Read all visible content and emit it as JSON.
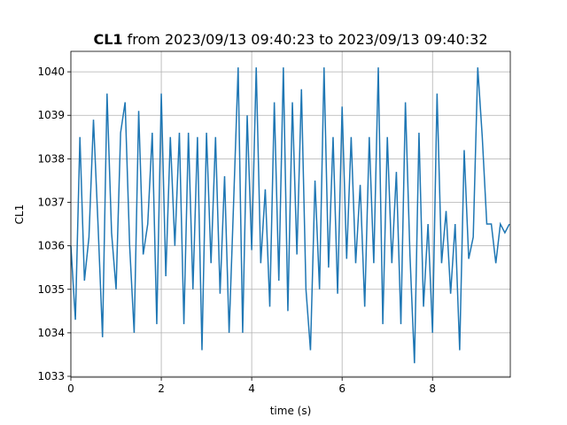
{
  "chart_data": {
    "type": "line",
    "title": [
      "CL1",
      "from 2023/09/13 09:40:23 to 2023/09/13 09:40:32"
    ],
    "xlabel": "time (s)",
    "ylabel": "CL1",
    "x": [
      0.0,
      0.1,
      0.2,
      0.3,
      0.4,
      0.5,
      0.6,
      0.7,
      0.8,
      0.9,
      1.0,
      1.1,
      1.2,
      1.3,
      1.4,
      1.5,
      1.6,
      1.7,
      1.8,
      1.9,
      2.0,
      2.1,
      2.2,
      2.3,
      2.4,
      2.5,
      2.6,
      2.7,
      2.8,
      2.9,
      3.0,
      3.1,
      3.2,
      3.3,
      3.4,
      3.5,
      3.6,
      3.7,
      3.8,
      3.9,
      4.0,
      4.1,
      4.2,
      4.3,
      4.4,
      4.5,
      4.6,
      4.7,
      4.8,
      4.9,
      5.0,
      5.1,
      5.2,
      5.3,
      5.4,
      5.5,
      5.6,
      5.7,
      5.8,
      5.9,
      6.0,
      6.1,
      6.2,
      6.3,
      6.4,
      6.5,
      6.6,
      6.7,
      6.8,
      6.9,
      7.0,
      7.1,
      7.2,
      7.3,
      7.4,
      7.5,
      7.6,
      7.7,
      7.8,
      7.9,
      8.0,
      8.1,
      8.2,
      8.3,
      8.4,
      8.5,
      8.6,
      8.7,
      8.8,
      8.9,
      9.0,
      9.1,
      9.2,
      9.3,
      9.4,
      9.5,
      9.6,
      9.7
    ],
    "series": [
      {
        "name": "CL1",
        "color": "#1f77b4",
        "values": [
          1036.0,
          1034.3,
          1038.5,
          1035.2,
          1036.2,
          1038.9,
          1036.5,
          1033.9,
          1039.5,
          1036.3,
          1035.0,
          1038.6,
          1039.3,
          1036.0,
          1034.0,
          1039.1,
          1035.8,
          1036.5,
          1038.6,
          1034.2,
          1039.5,
          1035.3,
          1038.5,
          1036.0,
          1038.6,
          1034.2,
          1038.6,
          1035.0,
          1038.5,
          1033.6,
          1038.6,
          1035.6,
          1038.5,
          1034.9,
          1037.6,
          1034.0,
          1037.0,
          1040.1,
          1034.0,
          1039.0,
          1035.9,
          1040.1,
          1035.6,
          1037.3,
          1034.6,
          1039.3,
          1035.2,
          1040.1,
          1034.5,
          1039.3,
          1035.8,
          1039.6,
          1035.0,
          1033.6,
          1037.5,
          1035.0,
          1040.1,
          1035.5,
          1038.5,
          1034.9,
          1039.2,
          1035.7,
          1038.5,
          1035.6,
          1037.4,
          1034.6,
          1038.5,
          1035.6,
          1040.1,
          1034.2,
          1038.5,
          1035.6,
          1037.7,
          1034.2,
          1039.3,
          1035.8,
          1033.3,
          1038.6,
          1034.6,
          1036.5,
          1034.0,
          1039.5,
          1035.6,
          1036.8,
          1034.9,
          1036.5,
          1033.6,
          1038.2,
          1035.7,
          1036.2,
          1040.1,
          1038.5,
          1036.5,
          1036.5,
          1035.6,
          1036.5,
          1036.3,
          1036.5
        ]
      }
    ],
    "xlim": [
      0,
      9.72
    ],
    "ylim": [
      1032.98,
      1040.47
    ],
    "xticks": [
      0,
      2,
      4,
      6,
      8
    ],
    "yticks": [
      1033,
      1034,
      1035,
      1036,
      1037,
      1038,
      1039,
      1040
    ],
    "grid": true
  }
}
